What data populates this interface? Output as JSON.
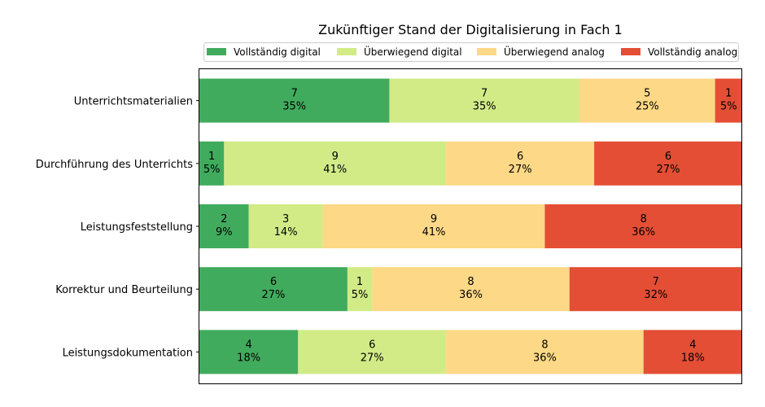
{
  "chart_data": {
    "type": "bar",
    "orientation": "horizontal",
    "stacked": true,
    "normalized": true,
    "title": "Zukünftiger Stand der Digitalisierung in Fach 1",
    "categories": [
      "Unterrichtsmaterialien",
      "Durchführung des Unterrichts",
      "Leistungsfeststellung",
      "Korrektur und Beurteilung",
      "Leistungsdokumentation"
    ],
    "series": [
      {
        "name": "Vollständig digital",
        "color": "#41ab5d",
        "values": [
          7,
          1,
          2,
          6,
          4
        ],
        "labels": [
          "35%",
          "5%",
          "9%",
          "27%",
          "18%"
        ]
      },
      {
        "name": "Überwiegend digital",
        "color": "#d2eb87",
        "values": [
          7,
          9,
          3,
          1,
          6
        ],
        "labels": [
          "35%",
          "41%",
          "14%",
          "5%",
          "27%"
        ]
      },
      {
        "name": "Überwiegend analog",
        "color": "#fdd886",
        "values": [
          5,
          6,
          9,
          8,
          8
        ],
        "labels": [
          "25%",
          "27%",
          "41%",
          "36%",
          "36%"
        ]
      },
      {
        "name": "Vollständig analog",
        "color": "#e34e35",
        "values": [
          1,
          6,
          8,
          7,
          4
        ],
        "labels": [
          "5%",
          "27%",
          "36%",
          "32%",
          "18%"
        ]
      }
    ],
    "legend_position": "top",
    "grid": false
  }
}
